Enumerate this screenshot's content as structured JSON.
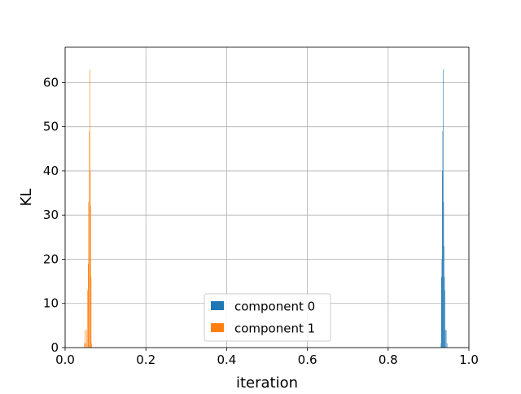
{
  "chart_data": {
    "type": "bar",
    "title": "",
    "xlabel": "iteration",
    "ylabel": "KL",
    "xlim": [
      0.0,
      1.0
    ],
    "ylim": [
      0,
      68
    ],
    "xticks": [
      "0.0",
      "0.2",
      "0.4",
      "0.6",
      "0.8",
      "1.0"
    ],
    "yticks": [
      "0",
      "10",
      "20",
      "30",
      "40",
      "50",
      "60"
    ],
    "grid": true,
    "legend_position": "bottom-center",
    "bin_width": 0.00105,
    "series": [
      {
        "name": "component 0",
        "color": "#1f77b4",
        "bins": [
          {
            "x": 0.9305,
            "y": 1
          },
          {
            "x": 0.9315,
            "y": 16
          },
          {
            "x": 0.9326,
            "y": 20
          },
          {
            "x": 0.9336,
            "y": 40
          },
          {
            "x": 0.9347,
            "y": 49
          },
          {
            "x": 0.9357,
            "y": 63
          },
          {
            "x": 0.9368,
            "y": 33
          },
          {
            "x": 0.9378,
            "y": 23
          },
          {
            "x": 0.9389,
            "y": 16
          },
          {
            "x": 0.9399,
            "y": 13
          },
          {
            "x": 0.941,
            "y": 4
          },
          {
            "x": 0.9431,
            "y": 4
          },
          {
            "x": 0.9452,
            "y": 1
          }
        ]
      },
      {
        "name": "component 1",
        "color": "#ff7f0e",
        "bins": [
          {
            "x": 0.047,
            "y": 1
          },
          {
            "x": 0.0491,
            "y": 4
          },
          {
            "x": 0.0512,
            "y": 1
          },
          {
            "x": 0.0523,
            "y": 4
          },
          {
            "x": 0.0544,
            "y": 13
          },
          {
            "x": 0.0565,
            "y": 19
          },
          {
            "x": 0.0575,
            "y": 33
          },
          {
            "x": 0.0596,
            "y": 49
          },
          {
            "x": 0.0607,
            "y": 63
          },
          {
            "x": 0.0617,
            "y": 40
          },
          {
            "x": 0.0628,
            "y": 32
          },
          {
            "x": 0.0638,
            "y": 16
          },
          {
            "x": 0.0649,
            "y": 1
          }
        ]
      }
    ]
  }
}
